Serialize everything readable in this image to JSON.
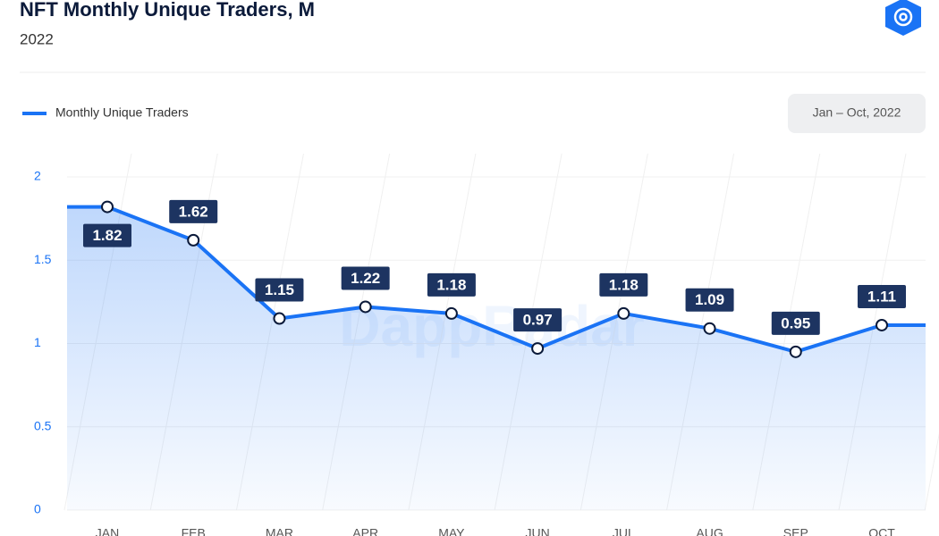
{
  "chart_data": {
    "type": "line",
    "title": "NFT Monthly Unique Traders, M",
    "subtitle": "2022",
    "date_range": "Jan – Oct, 2022",
    "watermark": "DappRadar",
    "categories": [
      "JAN",
      "FEB",
      "MAR",
      "APR",
      "MAY",
      "JUN",
      "JUL",
      "AUG",
      "SEP",
      "OCT"
    ],
    "series": [
      {
        "name": "Monthly Unique Traders",
        "color": "#1a73f5",
        "values": [
          1.82,
          1.62,
          1.15,
          1.22,
          1.18,
          0.97,
          1.18,
          1.09,
          0.95,
          1.11
        ]
      }
    ],
    "ylim": [
      0,
      2
    ],
    "yticks": [
      0,
      0.5,
      1,
      1.5,
      2
    ],
    "grid": true
  }
}
